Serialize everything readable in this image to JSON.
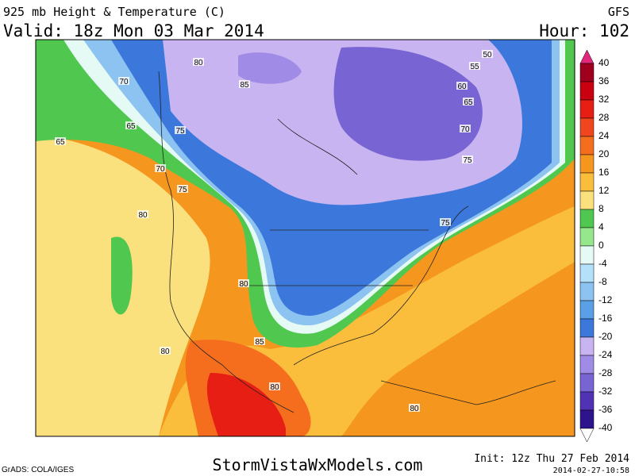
{
  "header": {
    "title": "925 mb Height & Temperature (C)",
    "model": "GFS",
    "valid": "Valid: 18z Mon 03 Mar 2014",
    "hour": "Hour: 102"
  },
  "colorbar": {
    "labels": [
      40,
      36,
      32,
      28,
      24,
      20,
      16,
      12,
      8,
      4,
      0,
      -4,
      -8,
      -12,
      -16,
      -20,
      -24,
      -28,
      -32,
      -36,
      -40
    ],
    "top_color": "#e0287c",
    "bottom_color": "#ffffff",
    "colors": [
      "#a0001e",
      "#c8000f",
      "#e61e14",
      "#f0461e",
      "#f56e1e",
      "#f5961e",
      "#fabe3c",
      "#fae17d",
      "#50c850",
      "#96e68c",
      "#e6faf5",
      "#b4e1fa",
      "#8cc3f0",
      "#5aa0e6",
      "#3c78dc",
      "#c8b4f0",
      "#a08ce6",
      "#7864d2",
      "#5032b4",
      "#2d148c"
    ]
  },
  "contour_labels": [
    "80",
    "85",
    "70",
    "65",
    "65",
    "75",
    "70",
    "75",
    "80",
    "80",
    "85",
    "80",
    "80",
    "80",
    "75",
    "75",
    "70",
    "65",
    "60",
    "55",
    "50"
  ],
  "footer": {
    "credit": "GrADS: COLA/IGES",
    "site": "StormVistaWxModels.com",
    "init": "Init: 12z Thu 27 Feb 2014",
    "timestamp": "2014-02-27-10:58"
  }
}
